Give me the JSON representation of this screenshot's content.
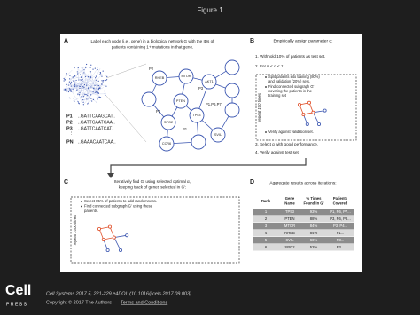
{
  "viewer": {
    "title": "Figure 1",
    "logo": {
      "name": "Cell",
      "sub": "PRESS"
    },
    "citation": "Cell Systems 2017 5, 221-229.e4DOI: (10.1016/j.cels.2017.09.003)",
    "copyright": "Copyright © 2017 The Authors",
    "terms": "Terms and Conditions"
  },
  "panel_a": {
    "label": "A",
    "caption_lines": [
      "Label each node (i.e., gene) in a biological network G with the IDs of",
      "patients containing 1+ mutations in that gene."
    ],
    "sequences": [
      {
        "id": "P1",
        "seq": "..GATTCAAGCAT.."
      },
      {
        "id": "P2",
        "seq": "..GATTCAATCAA.."
      },
      {
        "id": "P3",
        "seq": "..GATTCAATCAT.."
      },
      {
        "id": "PN",
        "seq": "..GAAACAATCAA.."
      }
    ],
    "network_nodes": [
      "RHEB",
      "MTOR",
      "AKT1",
      "PTEN",
      "SPG2",
      "TP53",
      "CCR6",
      "SVIL"
    ],
    "network_annotations": [
      "P2",
      "P3",
      "P3",
      "P1",
      "P1,P6,P7"
    ]
  },
  "panel_b": {
    "label": "B",
    "heading": "Empirically assign parameter α:",
    "steps": [
      "1. Withhold 10% of patients as test set.",
      "2. For 0 < α < 1:",
      "3. Select α with good performance.",
      "4. Verify against test set."
    ],
    "loop_bullets": [
      [
        "Split patients into training (80%)",
        "and validation (20%) sets."
      ],
      [
        "Find connected subgraph G'",
        "covering the patients in the",
        "training set"
      ],
      [
        "Verify against validation set."
      ]
    ],
    "repeat": "repeat 100 times"
  },
  "panel_c": {
    "label": "C",
    "caption_lines": [
      "Iteratively find G' using selected optimal α,",
      "keeping track of genes selected in G':"
    ],
    "bullets": [
      [
        "Select 85% of patients to add randomness."
      ],
      [
        "Find connected subgraph G' using these",
        "patients."
      ]
    ],
    "repeat": "repeat 1000 times"
  },
  "panel_d": {
    "label": "D",
    "caption": "Aggregate results across iterations:",
    "table": {
      "header": [
        [
          "Rank"
        ],
        [
          "Gene",
          "Name"
        ],
        [
          "% Times",
          "Found in G'"
        ],
        [
          "Patients",
          "Covered"
        ]
      ],
      "rows": [
        [
          "1",
          "TP53",
          "93%",
          "P1, P6, P7..."
        ],
        [
          "2",
          "PTEN",
          "88%",
          "P3, P6, P8..."
        ],
        [
          "3",
          "MTOR",
          "84%",
          "P3, P4..."
        ],
        [
          "4",
          "RHEB",
          "84%",
          "P1..."
        ],
        [
          "5",
          "SVIL",
          "66%",
          "P3..."
        ],
        [
          "6",
          "SPG2",
          "52%",
          "P3..."
        ]
      ]
    }
  }
}
